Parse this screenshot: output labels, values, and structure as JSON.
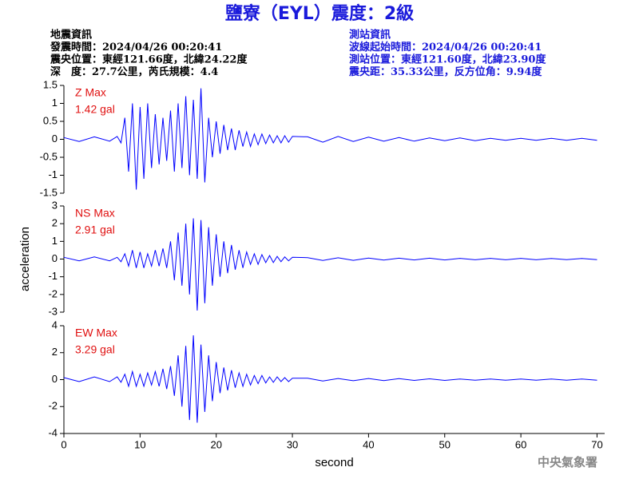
{
  "title": "鹽寮（EYL）震度：2級",
  "info_left": [
    "地震資訊",
    "發震時間：2024/04/26 00:20:41",
    "震央位置：東經121.66度，北緯24.22度",
    "深　度：27.7公里，芮氏規模：4.4"
  ],
  "info_right": [
    "測站資訊",
    "波線起始時間：2024/04/26 00:20:41",
    "測站位置：東經121.60度，北緯23.90度",
    "震央距：35.33公里，反方位角：9.94度"
  ],
  "footer": "中央氣象署",
  "chart_data": [
    {
      "type": "line",
      "label": "Z Max",
      "max_label": "1.42 gal",
      "color": "#0000ff",
      "xlim": [
        0,
        71
      ],
      "ylim": [
        -1.5,
        1.5
      ],
      "yticks": [
        -1.5,
        -1,
        -0.5,
        0,
        0.5,
        1,
        1.5
      ],
      "x": [
        0,
        2,
        4,
        6,
        7,
        7.5,
        8,
        8.5,
        9,
        9.5,
        10,
        10.5,
        11,
        11.5,
        12,
        12.5,
        13,
        13.5,
        14,
        14.5,
        15,
        15.5,
        16,
        16.5,
        17,
        17.5,
        18,
        18.5,
        19,
        19.5,
        20,
        20.5,
        21,
        21.5,
        22,
        22.5,
        23,
        23.5,
        24,
        24.5,
        25,
        25.5,
        26,
        26.5,
        27,
        27.5,
        28,
        28.5,
        29,
        29.5,
        30,
        32,
        34,
        36,
        38,
        40,
        42,
        44,
        46,
        48,
        50,
        52,
        54,
        56,
        58,
        60,
        62,
        64,
        66,
        68,
        70
      ],
      "values": [
        0.05,
        -0.06,
        0.07,
        -0.05,
        0.08,
        -0.1,
        0.6,
        -0.9,
        1.0,
        -1.4,
        0.9,
        -1.1,
        1.0,
        -0.8,
        0.7,
        -0.7,
        0.6,
        -0.6,
        0.8,
        -0.9,
        1.0,
        -0.8,
        1.2,
        -1.0,
        1.1,
        -1.1,
        1.42,
        -1.2,
        0.6,
        -0.5,
        0.5,
        -0.4,
        0.4,
        -0.3,
        0.3,
        -0.3,
        0.25,
        -0.2,
        0.2,
        -0.2,
        0.15,
        -0.15,
        0.15,
        -0.12,
        0.12,
        -0.1,
        0.1,
        -0.1,
        0.1,
        -0.08,
        0.08,
        0.07,
        -0.08,
        0.08,
        -0.06,
        0.06,
        -0.05,
        0.05,
        -0.05,
        0.04,
        -0.04,
        0.04,
        -0.04,
        0.03,
        -0.03,
        0.03,
        -0.03,
        0.03,
        -0.03,
        0.03,
        -0.03
      ]
    },
    {
      "type": "line",
      "label": "NS Max",
      "max_label": "2.91 gal",
      "color": "#0000ff",
      "xlim": [
        0,
        71
      ],
      "ylabel": "acceleration",
      "ylim": [
        -3,
        3
      ],
      "yticks": [
        -3,
        -2,
        -1,
        0,
        1,
        2,
        3
      ],
      "x": [
        0,
        2,
        4,
        6,
        7,
        7.5,
        8,
        8.5,
        9,
        9.5,
        10,
        10.5,
        11,
        11.5,
        12,
        12.5,
        13,
        13.5,
        14,
        14.5,
        15,
        15.5,
        16,
        16.5,
        17,
        17.5,
        18,
        18.5,
        19,
        19.5,
        20,
        20.5,
        21,
        21.5,
        22,
        22.5,
        23,
        23.5,
        24,
        24.5,
        25,
        25.5,
        26,
        26.5,
        27,
        27.5,
        28,
        28.5,
        29,
        29.5,
        30,
        32,
        34,
        36,
        38,
        40,
        42,
        44,
        46,
        48,
        50,
        52,
        54,
        56,
        58,
        60,
        62,
        64,
        66,
        68,
        70
      ],
      "values": [
        0.1,
        -0.1,
        0.12,
        -0.1,
        0.1,
        -0.15,
        0.3,
        -0.4,
        0.5,
        -0.5,
        0.4,
        -0.5,
        0.3,
        -0.4,
        0.5,
        -0.4,
        0.6,
        -0.5,
        1.0,
        -1.2,
        1.5,
        -1.5,
        2.0,
        -2.0,
        2.3,
        -2.91,
        2.2,
        -2.5,
        1.8,
        -1.5,
        1.4,
        -1.0,
        1.0,
        -0.8,
        0.8,
        -0.6,
        0.5,
        -0.5,
        0.4,
        -0.3,
        0.3,
        -0.3,
        0.25,
        -0.2,
        0.2,
        -0.2,
        0.15,
        -0.15,
        0.12,
        -0.1,
        0.1,
        0.08,
        -0.08,
        0.07,
        -0.07,
        0.06,
        -0.06,
        0.05,
        -0.05,
        0.05,
        -0.05,
        0.04,
        -0.04,
        0.04,
        -0.04,
        0.04,
        -0.04,
        0.03,
        -0.03,
        0.03,
        -0.03
      ]
    },
    {
      "type": "line",
      "label": "EW Max",
      "max_label": "3.29 gal",
      "color": "#0000ff",
      "xlim": [
        0,
        71
      ],
      "xlabel": "second",
      "xticks": [
        0,
        10,
        20,
        30,
        40,
        50,
        60,
        70
      ],
      "ylim": [
        -4,
        4
      ],
      "yticks": [
        -4,
        -2,
        0,
        2,
        4
      ],
      "x": [
        0,
        2,
        4,
        6,
        7,
        7.5,
        8,
        8.5,
        9,
        9.5,
        10,
        10.5,
        11,
        11.5,
        12,
        12.5,
        13,
        13.5,
        14,
        14.5,
        15,
        15.5,
        16,
        16.5,
        17,
        17.5,
        18,
        18.5,
        19,
        19.5,
        20,
        20.5,
        21,
        21.5,
        22,
        22.5,
        23,
        23.5,
        24,
        24.5,
        25,
        25.5,
        26,
        26.5,
        27,
        27.5,
        28,
        28.5,
        29,
        29.5,
        30,
        32,
        34,
        36,
        38,
        40,
        42,
        44,
        46,
        48,
        50,
        52,
        54,
        56,
        58,
        60,
        62,
        64,
        66,
        68,
        70
      ],
      "values": [
        0.15,
        -0.15,
        0.2,
        -0.15,
        0.2,
        -0.2,
        0.4,
        -0.5,
        0.6,
        -0.5,
        0.4,
        -0.5,
        0.5,
        -0.4,
        0.6,
        -0.5,
        0.8,
        -0.7,
        1.0,
        -1.2,
        1.8,
        -2.0,
        2.5,
        -3.0,
        3.29,
        -3.2,
        2.6,
        -2.4,
        1.8,
        -1.6,
        1.3,
        -1.0,
        0.9,
        -0.8,
        0.7,
        -0.6,
        0.5,
        -0.5,
        0.4,
        -0.4,
        0.3,
        -0.3,
        0.3,
        -0.25,
        0.2,
        -0.2,
        0.2,
        -0.15,
        0.15,
        -0.15,
        0.1,
        0.1,
        -0.1,
        0.08,
        -0.08,
        0.08,
        -0.07,
        0.07,
        -0.06,
        0.06,
        -0.06,
        0.05,
        -0.05,
        0.05,
        -0.05,
        0.05,
        -0.04,
        0.04,
        -0.04,
        0.04,
        -0.04
      ]
    }
  ]
}
